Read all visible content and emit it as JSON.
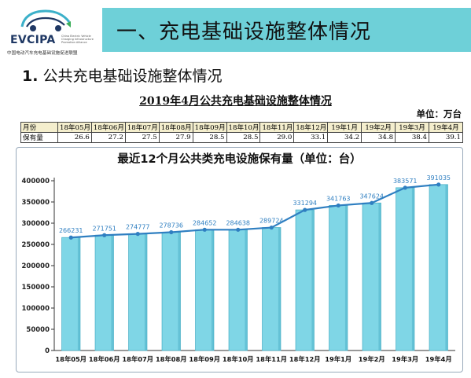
{
  "logo": {
    "word": "EVCIPA",
    "english": "China Electric Vehicle Charging Infrastructure Promotion Alliance",
    "chinese": "中国电动汽车充电基础设施促进联盟",
    "colors": {
      "navy": "#1f3864",
      "accent": "#3bb0c9",
      "green": "#3cae5a"
    }
  },
  "header": {
    "title": "一、充电基础设施整体情况",
    "bar_color": "#6ed0d8"
  },
  "section": {
    "number": "1.",
    "title": "公共充电基础设施整体情况"
  },
  "table": {
    "title": "2019年4月公共充电基础设施整体情况",
    "unit": "单位：万台",
    "row_header_month": "月份",
    "row_header_value": "保有量",
    "months": [
      "18年05月",
      "18年06月",
      "18年07月",
      "18年08月",
      "18年09月",
      "18年10月",
      "18年11月",
      "18年12月",
      "19年1月",
      "19年2月",
      "19年3月",
      "19年4月"
    ],
    "values": [
      "26.6",
      "27.2",
      "27.5",
      "27.9",
      "28.5",
      "28.5",
      "29.0",
      "33.1",
      "34.2",
      "34.8",
      "38.4",
      "39.1"
    ]
  },
  "chart_data": {
    "type": "bar",
    "title": "最近12个月公共类充电设施保有量（单位：台）",
    "categories": [
      "18年05月",
      "18年06月",
      "18年07月",
      "18年08月",
      "18年09月",
      "18年10月",
      "18年11月",
      "18年12月",
      "19年1月",
      "19年2月",
      "19年3月",
      "19年4月"
    ],
    "values": [
      266231,
      271751,
      274777,
      278736,
      284652,
      284638,
      289724,
      331294,
      341763,
      347624,
      383571,
      391035
    ],
    "line_overlay": true,
    "data_labels": true,
    "ylim": [
      0,
      400000
    ],
    "yticks": [
      0,
      50000,
      100000,
      150000,
      200000,
      250000,
      300000,
      350000,
      400000
    ],
    "grid": false,
    "colors": {
      "bar": "#7fd6e6",
      "bar_side": "#4fb3c9",
      "line": "#2f7fc1",
      "label": "#2f7fc1"
    }
  }
}
